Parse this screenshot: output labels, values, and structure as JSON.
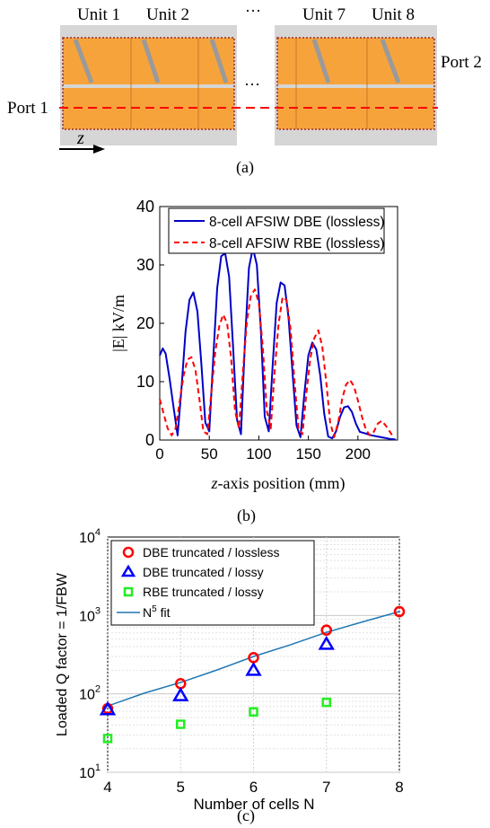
{
  "panel_a": {
    "unit_labels": [
      "Unit 1",
      "Unit 2",
      "Unit 7",
      "Unit 8"
    ],
    "ellipsis_top": "···",
    "ellipsis_mid": "···",
    "port1": "Port 1",
    "port2": "Port 2",
    "axis_label": "z",
    "caption": "(a)",
    "colors": {
      "substrate": "#f7a33c",
      "metal": "#d6d6d6",
      "port_line": "#ff0000",
      "vias": "#9e2a2a"
    }
  },
  "panel_b": {
    "caption": "(b)",
    "chart_data": {
      "type": "line",
      "xlabel_italic": "z",
      "xlabel_rest": "-axis position (mm)",
      "ylabel": "|E| kV/m",
      "xlim": [
        0,
        240
      ],
      "ylim": [
        0,
        40
      ],
      "xticks": [
        0,
        50,
        100,
        150,
        200
      ],
      "yticks": [
        0,
        10,
        20,
        30,
        40
      ],
      "legend_position": "top",
      "series": [
        {
          "name": "8-cell AFSIW DBE (lossless)",
          "color": "#0000c8",
          "style": "solid",
          "x": [
            0,
            3,
            6,
            10,
            14,
            18,
            22,
            26,
            30,
            34,
            38,
            42,
            46,
            50,
            54,
            58,
            62,
            66,
            70,
            74,
            78,
            82,
            86,
            90,
            94,
            98,
            102,
            106,
            110,
            114,
            118,
            122,
            126,
            130,
            134,
            138,
            142,
            146,
            150,
            154,
            158,
            162,
            166,
            170,
            174,
            178,
            182,
            186,
            190,
            194,
            198,
            202,
            206,
            210,
            214,
            220,
            226,
            232,
            238
          ],
          "y": [
            14.5,
            15.7,
            14.8,
            10.5,
            5.5,
            0.8,
            9.0,
            18.5,
            24.0,
            25.3,
            22.0,
            13.0,
            3.0,
            1.5,
            14.0,
            26.0,
            31.5,
            32.0,
            28.0,
            16.0,
            3.5,
            1.0,
            17.0,
            29.5,
            32.9,
            30.0,
            19.0,
            4.0,
            1.5,
            13.0,
            23.5,
            27.0,
            26.5,
            21.0,
            11.5,
            2.5,
            0.5,
            8.0,
            14.5,
            16.7,
            15.5,
            11.0,
            4.5,
            0.6,
            0.3,
            1.5,
            4.0,
            5.6,
            5.8,
            4.8,
            2.8,
            1.4,
            1.2,
            1.0,
            0.8,
            0.6,
            0.4,
            0.2,
            0.1
          ]
        },
        {
          "name": "8-cell AFSIW RBE (lossless)",
          "color": "#ff0000",
          "style": "dashed",
          "x": [
            0,
            4,
            8,
            12,
            16,
            20,
            24,
            28,
            32,
            36,
            40,
            44,
            48,
            52,
            56,
            60,
            64,
            68,
            72,
            76,
            80,
            84,
            88,
            92,
            96,
            100,
            104,
            108,
            112,
            116,
            120,
            124,
            128,
            132,
            136,
            140,
            144,
            148,
            152,
            156,
            160,
            164,
            168,
            172,
            176,
            180,
            184,
            188,
            192,
            196,
            200,
            204,
            208,
            212,
            216,
            220,
            224,
            228,
            232,
            236
          ],
          "y": [
            7.0,
            4.5,
            2.0,
            0.8,
            2.0,
            6.5,
            11.0,
            13.8,
            14.2,
            12.0,
            7.0,
            1.5,
            1.0,
            8.0,
            15.0,
            19.5,
            21.5,
            20.0,
            14.0,
            5.0,
            2.0,
            12.0,
            20.5,
            24.8,
            25.8,
            23.5,
            16.0,
            5.0,
            2.0,
            12.0,
            20.0,
            24.5,
            24.0,
            19.0,
            10.0,
            2.0,
            1.0,
            8.0,
            14.0,
            17.5,
            18.8,
            16.0,
            10.0,
            3.0,
            0.5,
            3.0,
            7.0,
            9.5,
            10.3,
            9.2,
            6.8,
            4.0,
            1.8,
            0.8,
            1.4,
            2.8,
            3.3,
            2.5,
            1.5,
            0.4
          ]
        }
      ]
    }
  },
  "panel_c": {
    "caption": "(c)",
    "chart_data": {
      "type": "scatter",
      "xlabel": "Number of cells N",
      "ylabel": "Loaded Q factor = 1/FBW",
      "xlim": [
        4,
        8
      ],
      "ylim_log10": [
        1,
        4
      ],
      "yscale": "log",
      "grid": true,
      "xticks": [
        4,
        5,
        6,
        7,
        8
      ],
      "yticks": [
        {
          "base": "10",
          "exp": "1",
          "value": 10
        },
        {
          "base": "10",
          "exp": "2",
          "value": 100
        },
        {
          "base": "10",
          "exp": "3",
          "value": 1000
        },
        {
          "base": "10",
          "exp": "4",
          "value": 10000
        }
      ],
      "legend_position": "top-left",
      "series": [
        {
          "name": "DBE truncated / lossless",
          "marker": "circle",
          "color": "#ff0000",
          "x": [
            4,
            5,
            6,
            7,
            8
          ],
          "y": [
            65,
            135,
            290,
            650,
            1120
          ]
        },
        {
          "name": "DBE truncated / lossy",
          "marker": "triangle",
          "color": "#0000ff",
          "x": [
            4,
            5,
            6,
            7
          ],
          "y": [
            63,
            95,
            200,
            430
          ]
        },
        {
          "name": "RBE truncated / lossy",
          "marker": "square",
          "color": "#22ee22",
          "x": [
            4,
            5,
            6,
            7
          ],
          "y": [
            27,
            41,
            59,
            78
          ]
        },
        {
          "name": "N⁵ fit",
          "label_base": "N",
          "label_exp": "5",
          "label_rest": " fit",
          "marker": "line",
          "color": "#1f77b4",
          "x": [
            4,
            4.5,
            5,
            5.5,
            6,
            6.5,
            7,
            7.5,
            8
          ],
          "y": [
            70,
            102,
            140,
            202,
            300,
            420,
            610,
            830,
            1120
          ]
        }
      ]
    }
  }
}
